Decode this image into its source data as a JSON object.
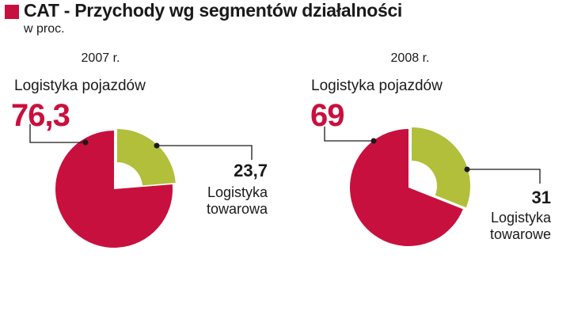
{
  "header": {
    "title": "CAT - Przychody wg segmentów działalności",
    "subtitle": "w proc.",
    "accent_color": "#c8103e"
  },
  "colors": {
    "main_segment": "#c8103e",
    "secondary_segment": "#b2bf3a",
    "leader_line": "#1a1a1a"
  },
  "chart_data": [
    {
      "type": "pie",
      "title": "2007 r.",
      "unit": "w proc.",
      "slices": [
        {
          "label": "Logistyka pojazdów",
          "value": 76.3,
          "value_text": "76,3"
        },
        {
          "label": "Logistyka towarowa",
          "value": 23.7,
          "value_text": "23,7"
        }
      ]
    },
    {
      "type": "pie",
      "title": "2008 r.",
      "unit": "w proc.",
      "slices": [
        {
          "label": "Logistyka pojazdów",
          "value": 69,
          "value_text": "69"
        },
        {
          "label": "Logistyka towarowe",
          "value": 31,
          "value_text": "31"
        }
      ]
    }
  ]
}
